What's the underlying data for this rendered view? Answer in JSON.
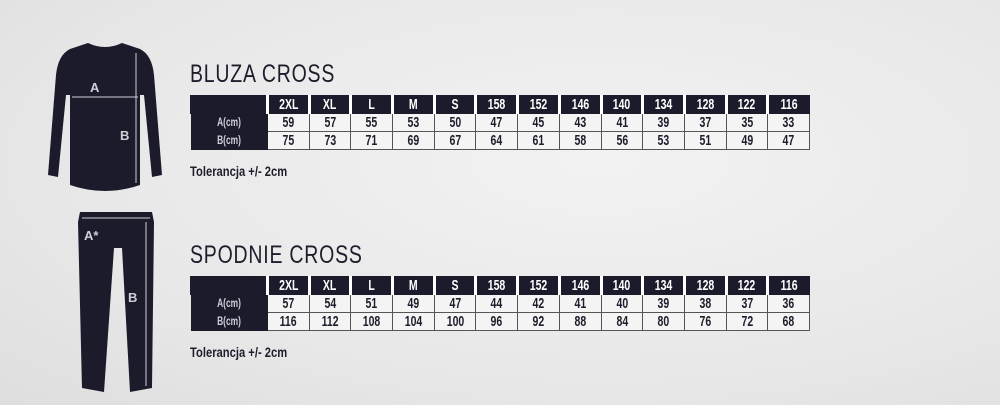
{
  "sizes": [
    "2XL",
    "XL",
    "L",
    "M",
    "S",
    "158",
    "152",
    "146",
    "140",
    "134",
    "128",
    "122",
    "116"
  ],
  "bluza": {
    "title": "BLUZA CROSS",
    "figure_labels": {
      "a": "A",
      "b": "B"
    },
    "rows": [
      {
        "label": "A(cm)",
        "values": [
          "59",
          "57",
          "55",
          "53",
          "50",
          "47",
          "45",
          "43",
          "41",
          "39",
          "37",
          "35",
          "33"
        ]
      },
      {
        "label": "B(cm)",
        "values": [
          "75",
          "73",
          "71",
          "69",
          "67",
          "64",
          "61",
          "58",
          "56",
          "53",
          "51",
          "49",
          "47"
        ]
      }
    ],
    "tolerance": "Tolerancja +/- 2cm"
  },
  "spodnie": {
    "title": "SPODNIE CROSS",
    "figure_labels": {
      "a": "A*",
      "b": "B"
    },
    "rows": [
      {
        "label": "A(cm)",
        "values": [
          "57",
          "54",
          "51",
          "49",
          "47",
          "44",
          "42",
          "41",
          "40",
          "39",
          "38",
          "37",
          "36"
        ]
      },
      {
        "label": "B(cm)",
        "values": [
          "116",
          "112",
          "108",
          "104",
          "100",
          "96",
          "92",
          "88",
          "84",
          "80",
          "76",
          "72",
          "68"
        ]
      }
    ],
    "tolerance": "Tolerancja +/- 2cm"
  },
  "colors": {
    "garment": "#1b1b2c",
    "background": "#ececec"
  }
}
